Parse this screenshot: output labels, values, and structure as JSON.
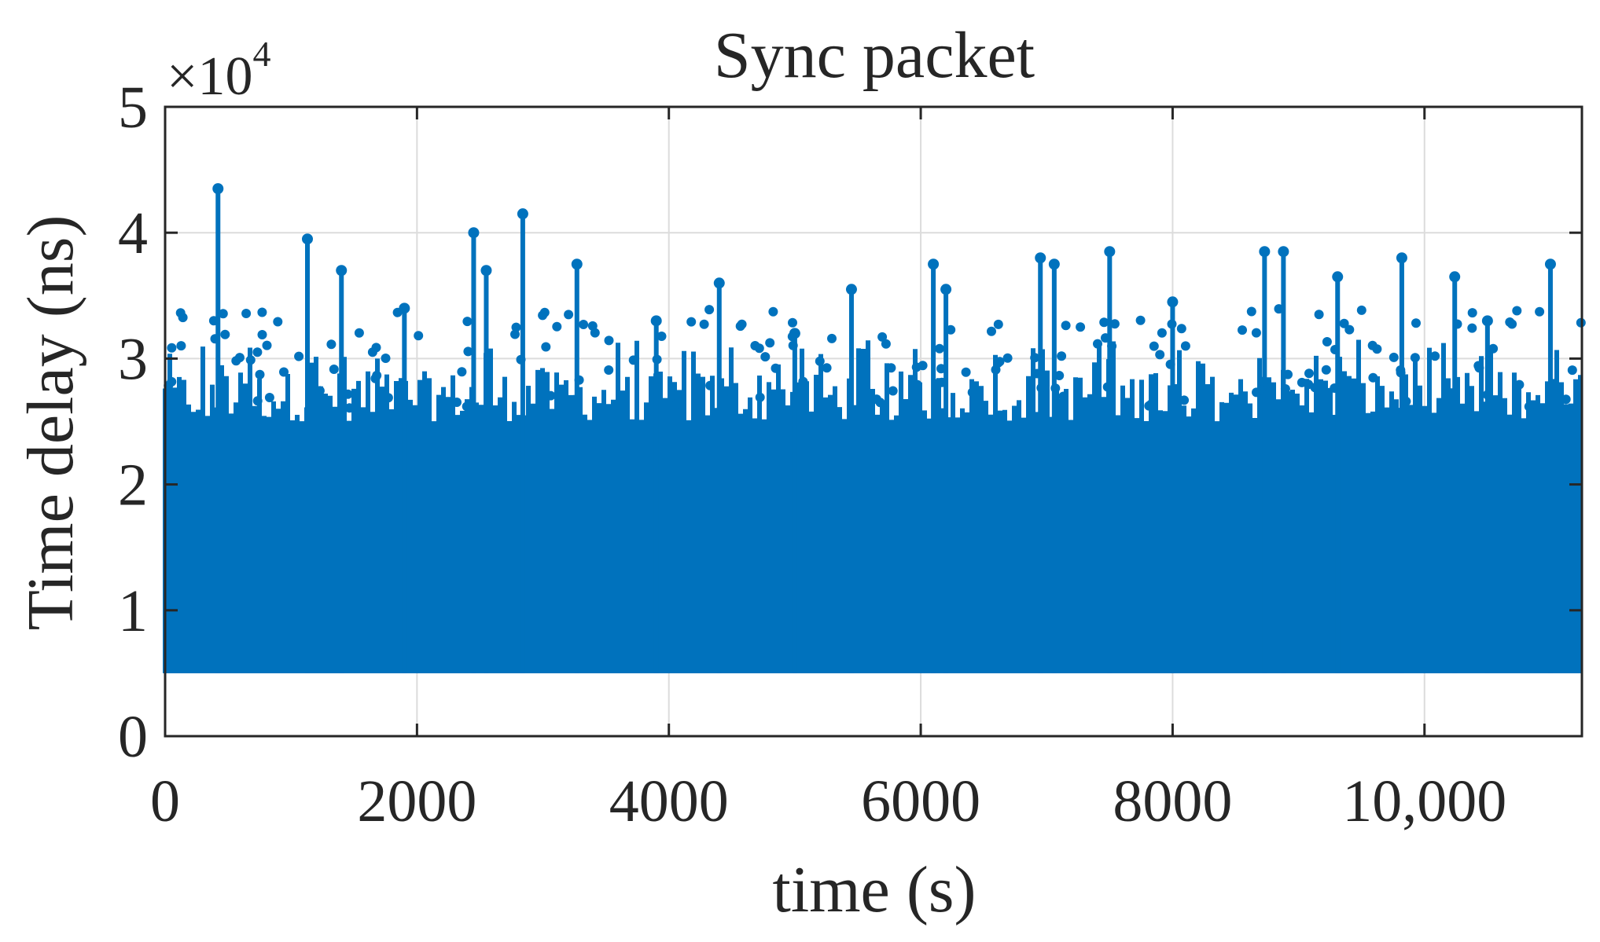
{
  "chart_data": {
    "type": "line",
    "title": "Sync packet",
    "xlabel": "time (s)",
    "ylabel": "Time delay (ns)",
    "y_exponent_label": "×10",
    "y_exponent_power": "4",
    "xlim": [
      0,
      11250
    ],
    "ylim": [
      0,
      50000
    ],
    "x_ticks": [
      0,
      2000,
      4000,
      6000,
      8000,
      10000
    ],
    "x_tick_labels": [
      "0",
      "2000",
      "4000",
      "6000",
      "8000",
      "10,000"
    ],
    "y_ticks": [
      0,
      10000,
      20000,
      30000,
      40000,
      50000
    ],
    "y_tick_labels": [
      "0",
      "1",
      "2",
      "3",
      "4",
      "5"
    ],
    "grid": true,
    "color": "#0072BD",
    "series_floor": 5000,
    "series_band_top": 25000,
    "series": [
      {
        "name": "",
        "sample_interval_s": 1,
        "peaks": [
          {
            "x": 420,
            "y": 43500
          },
          {
            "x": 1130,
            "y": 39500
          },
          {
            "x": 1400,
            "y": 37000
          },
          {
            "x": 2450,
            "y": 40000
          },
          {
            "x": 2550,
            "y": 37000
          },
          {
            "x": 2840,
            "y": 41500
          },
          {
            "x": 3270,
            "y": 37500
          },
          {
            "x": 4400,
            "y": 36000
          },
          {
            "x": 5450,
            "y": 35500
          },
          {
            "x": 6100,
            "y": 37500
          },
          {
            "x": 6200,
            "y": 35500
          },
          {
            "x": 6950,
            "y": 38000
          },
          {
            "x": 7060,
            "y": 37500
          },
          {
            "x": 7500,
            "y": 38500
          },
          {
            "x": 8730,
            "y": 38500
          },
          {
            "x": 8880,
            "y": 38500
          },
          {
            "x": 9310,
            "y": 36500
          },
          {
            "x": 9820,
            "y": 38000
          },
          {
            "x": 10240,
            "y": 36500
          },
          {
            "x": 11000,
            "y": 37500
          },
          {
            "x": 5000,
            "y": 32000
          },
          {
            "x": 3900,
            "y": 33000
          },
          {
            "x": 8000,
            "y": 34500
          },
          {
            "x": 1900,
            "y": 34000
          },
          {
            "x": 10500,
            "y": 33000
          }
        ]
      }
    ]
  }
}
